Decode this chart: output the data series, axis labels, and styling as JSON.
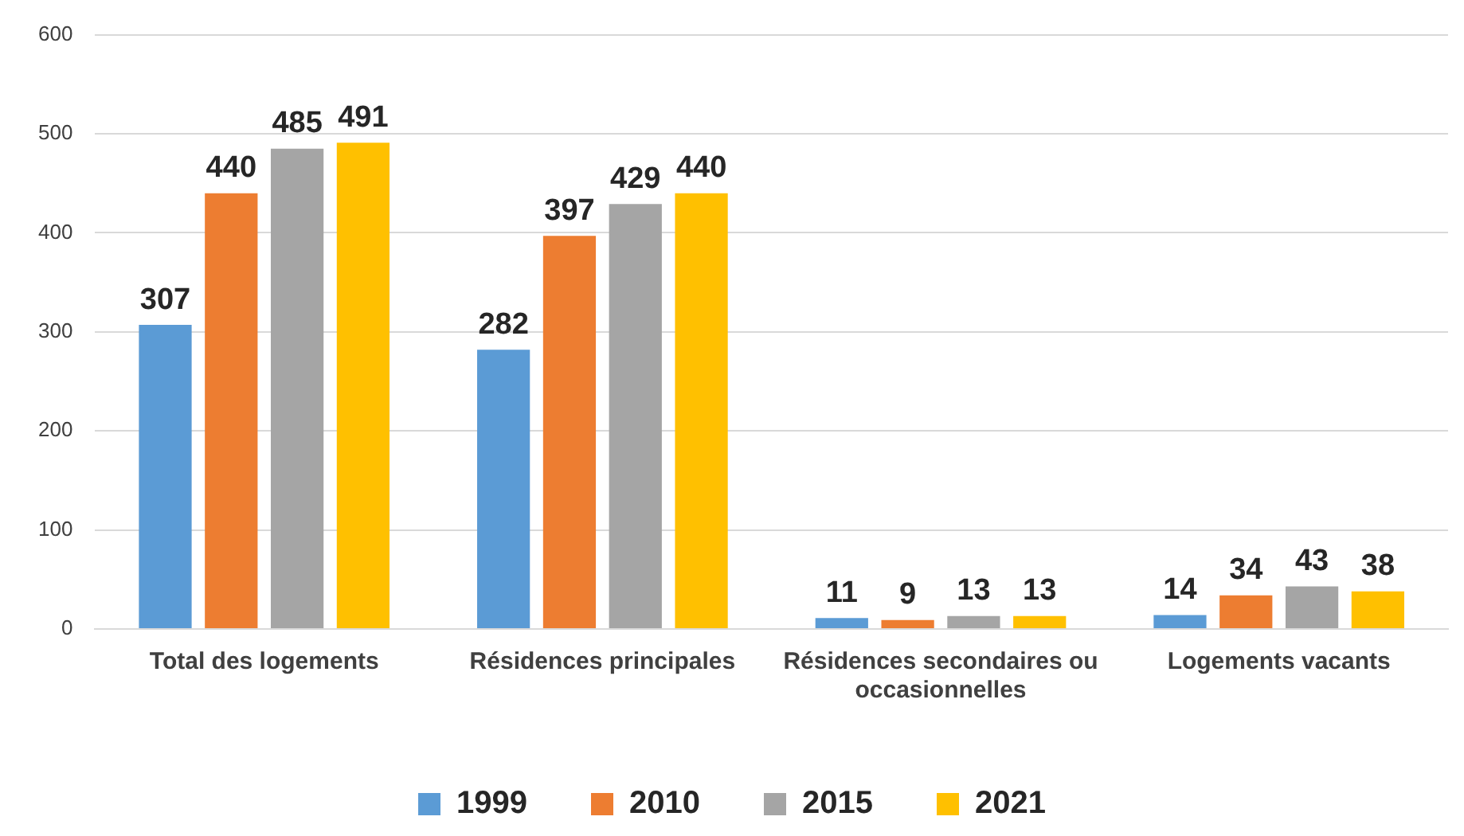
{
  "chart_data": {
    "type": "bar",
    "categories": [
      "Total des logements",
      "Résidences principales",
      "Résidences secondaires ou occasionnelles",
      "Logements vacants"
    ],
    "series": [
      {
        "name": "1999",
        "color": "#5b9bd5",
        "values": [
          307,
          282,
          11,
          14
        ]
      },
      {
        "name": "2010",
        "color": "#ed7d31",
        "values": [
          440,
          397,
          9,
          34
        ]
      },
      {
        "name": "2015",
        "color": "#a5a5a5",
        "values": [
          485,
          429,
          13,
          43
        ]
      },
      {
        "name": "2021",
        "color": "#ffc000",
        "values": [
          491,
          440,
          13,
          38
        ]
      }
    ],
    "ylim": [
      0,
      600
    ],
    "yticks": [
      0,
      100,
      200,
      300,
      400,
      500,
      600
    ],
    "grid": "y",
    "legend": "bottom",
    "data_labels": true
  }
}
